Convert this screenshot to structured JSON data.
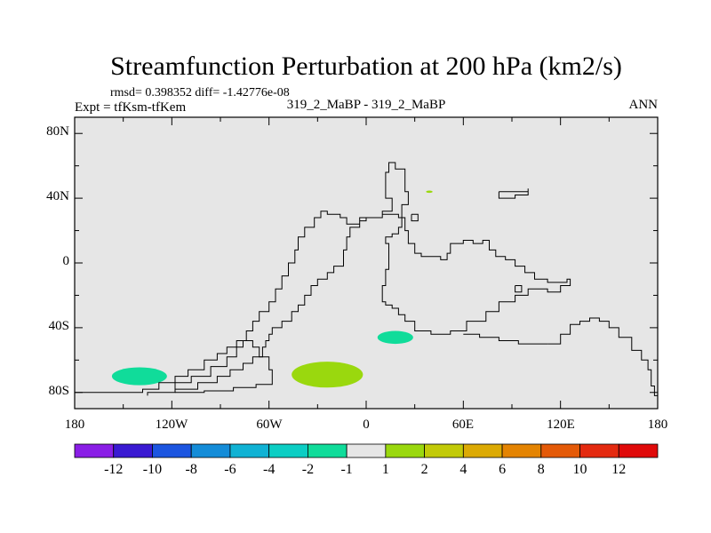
{
  "chart_data": {
    "type": "heatmap",
    "title": "Streamfunction Perturbation at 200 hPa (km2/s)",
    "subtitle_stats": "rmsd= 0.398352 diff= -1.42776e-08",
    "left_label": "Expt = tfKsm-tfKem",
    "center_label": "319_2_MaBP - 319_2_MaBP",
    "right_label": "ANN",
    "x_ticks": [
      "180",
      "120W",
      "60W",
      "0",
      "60E",
      "120E",
      "180"
    ],
    "y_ticks": [
      "80N",
      "40N",
      "0",
      "40S",
      "80S"
    ],
    "x_range": [
      -180,
      180
    ],
    "y_range": [
      -90,
      90
    ],
    "colorbar": {
      "labels": [
        "-12",
        "-10",
        "-8",
        "-6",
        "-4",
        "-2",
        "-1",
        "1",
        "2",
        "4",
        "6",
        "8",
        "10",
        "12"
      ],
      "colors": [
        "#8a1ee6",
        "#3a1ad2",
        "#1c55e0",
        "#148cd8",
        "#10b2d4",
        "#0ccec4",
        "#10dc9a",
        "#e6e6e6",
        "#9ad80e",
        "#c2ca08",
        "#dcaa04",
        "#e48402",
        "#e45a08",
        "#e42a10",
        "#e00a0a"
      ]
    },
    "blobs": [
      {
        "name": "blob-green-small-40n",
        "lon": 39,
        "lat": 44,
        "rx_deg": 2,
        "ry_deg": 0.7,
        "color": "#9ad80e"
      },
      {
        "name": "blob-teal-45s",
        "lon": 18,
        "lat": -46,
        "rx_deg": 11,
        "ry_deg": 4,
        "color": "#10dc9a"
      },
      {
        "name": "blob-teal-70s-west",
        "lon": -140,
        "lat": -70,
        "rx_deg": 17,
        "ry_deg": 5.5,
        "color": "#10dc9a"
      },
      {
        "name": "blob-green-70s",
        "lon": -24,
        "lat": -69,
        "rx_deg": 22,
        "ry_deg": 8,
        "color": "#9ad80e"
      }
    ],
    "coastlines": [
      {
        "name": "coastline-main",
        "points": [
          [
            -180,
            -80
          ],
          [
            -165,
            -80
          ],
          [
            -150,
            -80
          ],
          [
            -138,
            -78
          ],
          [
            -128,
            -74
          ],
          [
            -118,
            -70
          ],
          [
            -110,
            -66
          ],
          [
            -100,
            -60
          ],
          [
            -92,
            -56
          ],
          [
            -86,
            -52
          ],
          [
            -80,
            -48
          ],
          [
            -74,
            -42
          ],
          [
            -70,
            -36
          ],
          [
            -66,
            -30
          ],
          [
            -60,
            -24
          ],
          [
            -56,
            -16
          ],
          [
            -52,
            -8
          ],
          [
            -48,
            0
          ],
          [
            -44,
            8
          ],
          [
            -42,
            16
          ],
          [
            -38,
            22
          ],
          [
            -32,
            28
          ],
          [
            -28,
            32
          ],
          [
            -24,
            30
          ],
          [
            -20,
            30
          ],
          [
            -16,
            28
          ],
          [
            -12,
            24
          ],
          [
            -8,
            24
          ],
          [
            -4,
            26
          ],
          [
            0,
            28
          ],
          [
            6,
            28
          ],
          [
            10,
            30
          ],
          [
            14,
            30
          ],
          [
            20,
            28
          ],
          [
            24,
            20
          ],
          [
            26,
            12
          ],
          [
            30,
            6
          ],
          [
            34,
            4
          ],
          [
            40,
            4
          ],
          [
            46,
            2
          ],
          [
            50,
            6
          ],
          [
            52,
            12
          ],
          [
            60,
            14
          ],
          [
            66,
            12
          ],
          [
            72,
            14
          ],
          [
            76,
            8
          ],
          [
            80,
            4
          ],
          [
            86,
            2
          ],
          [
            92,
            -2
          ],
          [
            98,
            -6
          ],
          [
            104,
            -10
          ],
          [
            112,
            -12
          ],
          [
            118,
            -12
          ],
          [
            124,
            -10
          ],
          [
            126,
            -14
          ],
          [
            120,
            -18
          ],
          [
            112,
            -16
          ],
          [
            104,
            -16
          ],
          [
            100,
            -20
          ],
          [
            92,
            -24
          ],
          [
            82,
            -30
          ],
          [
            74,
            -36
          ],
          [
            62,
            -42
          ],
          [
            52,
            -44
          ],
          [
            40,
            -42
          ],
          [
            30,
            -36
          ],
          [
            24,
            -32
          ],
          [
            20,
            -28
          ],
          [
            16,
            -26
          ],
          [
            12,
            -24
          ],
          [
            10,
            -14
          ],
          [
            12,
            -4
          ],
          [
            14,
            4
          ],
          [
            14,
            12
          ],
          [
            12,
            16
          ],
          [
            16,
            18
          ],
          [
            20,
            22
          ],
          [
            22,
            28
          ],
          [
            22,
            36
          ],
          [
            26,
            44
          ],
          [
            24,
            52
          ],
          [
            24,
            58
          ],
          [
            18,
            62
          ],
          [
            14,
            62
          ],
          [
            14,
            56
          ],
          [
            12,
            48
          ],
          [
            12,
            40
          ],
          [
            16,
            32
          ],
          [
            10,
            28
          ],
          [
            0,
            28
          ],
          [
            -4,
            22
          ],
          [
            -10,
            16
          ],
          [
            -12,
            8
          ],
          [
            -14,
            -2
          ],
          [
            -20,
            -6
          ],
          [
            -24,
            -10
          ],
          [
            -30,
            -14
          ],
          [
            -34,
            -20
          ],
          [
            -38,
            -26
          ],
          [
            -42,
            -30
          ],
          [
            -46,
            -36
          ],
          [
            -52,
            -40
          ],
          [
            -58,
            -44
          ],
          [
            -60,
            -48
          ],
          [
            -62,
            -52
          ],
          [
            -64,
            -58
          ],
          [
            -70,
            -62
          ],
          [
            -76,
            -66
          ],
          [
            -84,
            -70
          ],
          [
            -92,
            -74
          ],
          [
            -104,
            -78
          ],
          [
            -118,
            -80
          ],
          [
            -135,
            -82
          ]
        ]
      },
      {
        "name": "coastline-inner",
        "points": [
          [
            -118,
            -80
          ],
          [
            -100,
            -79
          ],
          [
            -82,
            -77
          ],
          [
            -68,
            -75
          ],
          [
            -58,
            -74
          ],
          [
            -58,
            -66
          ],
          [
            -60,
            -58
          ],
          [
            -66,
            -52
          ],
          [
            -70,
            -48
          ],
          [
            -76,
            -52
          ],
          [
            -80,
            -58
          ],
          [
            -86,
            -64
          ],
          [
            -96,
            -70
          ],
          [
            -108,
            -74
          ],
          [
            -118,
            -78
          ]
        ]
      },
      {
        "name": "coastline-east-island",
        "points": [
          [
            82,
            44
          ],
          [
            92,
            44
          ],
          [
            100,
            46
          ],
          [
            100,
            42
          ],
          [
            92,
            40
          ],
          [
            84,
            40
          ],
          [
            82,
            42
          ],
          [
            82,
            44
          ]
        ]
      },
      {
        "name": "coastline-sahara-box",
        "points": [
          [
            28,
            30
          ],
          [
            32,
            30
          ],
          [
            32,
            26
          ],
          [
            28,
            26
          ],
          [
            28,
            30
          ]
        ]
      },
      {
        "name": "coastline-square-tiny",
        "points": [
          [
            92,
            -14
          ],
          [
            96,
            -14
          ],
          [
            96,
            -18
          ],
          [
            92,
            -18
          ],
          [
            92,
            -14
          ]
        ]
      },
      {
        "name": "coastline-aus-ridge",
        "points": [
          [
            112,
            -50
          ],
          [
            120,
            -44
          ],
          [
            126,
            -38
          ],
          [
            132,
            -36
          ],
          [
            138,
            -34
          ],
          [
            144,
            -36
          ],
          [
            150,
            -40
          ],
          [
            156,
            -46
          ],
          [
            164,
            -54
          ],
          [
            170,
            -60
          ],
          [
            174,
            -66
          ],
          [
            176,
            -76
          ],
          [
            178,
            -82
          ],
          [
            180,
            -86
          ]
        ]
      },
      {
        "name": "coastline-aus-link",
        "points": [
          [
            60,
            -44
          ],
          [
            70,
            -46
          ],
          [
            82,
            -48
          ],
          [
            94,
            -50
          ],
          [
            104,
            -50
          ],
          [
            112,
            -50
          ]
        ]
      }
    ]
  }
}
